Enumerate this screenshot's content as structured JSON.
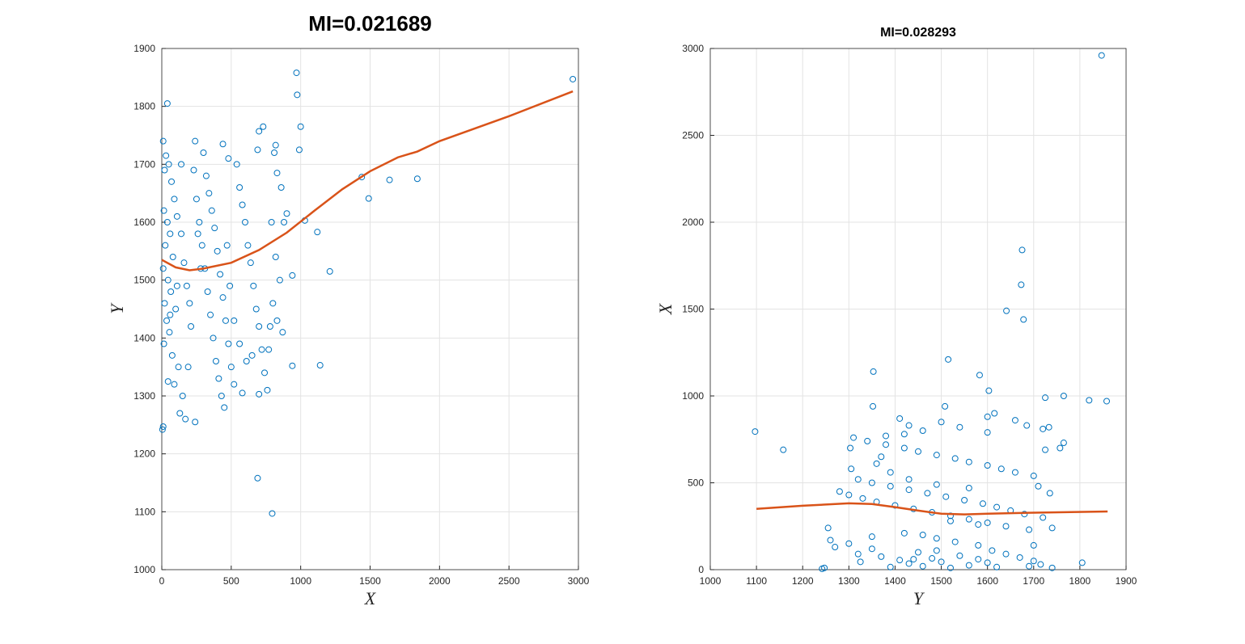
{
  "chart_data": [
    {
      "type": "scatter",
      "title": "MI=0.021689",
      "xlabel": "X",
      "ylabel": "Y",
      "color": "#0072bd",
      "fit_color": "#d95319",
      "grid": true,
      "xlim": [
        0,
        3000
      ],
      "ylim": [
        1000,
        1900
      ],
      "xticks": [
        0,
        500,
        1000,
        1500,
        2000,
        2500,
        3000
      ],
      "yticks": [
        1000,
        1100,
        1200,
        1300,
        1400,
        1500,
        1600,
        1700,
        1800,
        1900
      ],
      "x": [
        2960,
        970,
        975,
        1000,
        40,
        1440,
        1490,
        1640,
        1840,
        1210,
        1140,
        690,
        795,
        10,
        5,
        990,
        1030,
        1120,
        940,
        940,
        870,
        820,
        730,
        700,
        10,
        240,
        440,
        20,
        30,
        50,
        70,
        90,
        15,
        40,
        60,
        25,
        80,
        10,
        45,
        65,
        20,
        100,
        35,
        55,
        15,
        75,
        120,
        90,
        150,
        130,
        170,
        240,
        45,
        110,
        140,
        160,
        180,
        200,
        210,
        230,
        250,
        270,
        290,
        310,
        330,
        350,
        370,
        390,
        410,
        430,
        450,
        300,
        320,
        340,
        360,
        380,
        400,
        420,
        440,
        460,
        480,
        500,
        520,
        540,
        560,
        580,
        600,
        620,
        640,
        660,
        680,
        700,
        720,
        740,
        760,
        580,
        700,
        480,
        690,
        810,
        830,
        860,
        790,
        880,
        900,
        850,
        820,
        800,
        780,
        830,
        770,
        650,
        610,
        560,
        520,
        490,
        470,
        140,
        110,
        60,
        190,
        260,
        280
      ],
      "y": [
        1847,
        1858,
        1820,
        1765,
        1805,
        1678,
        1641,
        1673,
        1675,
        1515,
        1353,
        1158,
        1097,
        1247,
        1242,
        1725,
        1603,
        1583,
        1352,
        1508,
        1410,
        1733,
        1765,
        1757,
        1740,
        1740,
        1735,
        1690,
        1715,
        1700,
        1670,
        1640,
        1620,
        1600,
        1580,
        1560,
        1540,
        1520,
        1500,
        1480,
        1460,
        1450,
        1430,
        1410,
        1390,
        1370,
        1350,
        1320,
        1300,
        1270,
        1260,
        1255,
        1325,
        1610,
        1580,
        1530,
        1490,
        1460,
        1420,
        1690,
        1640,
        1600,
        1560,
        1520,
        1480,
        1440,
        1400,
        1360,
        1330,
        1300,
        1280,
        1720,
        1680,
        1650,
        1620,
        1590,
        1550,
        1510,
        1470,
        1430,
        1390,
        1350,
        1320,
        1700,
        1660,
        1630,
        1600,
        1560,
        1530,
        1490,
        1450,
        1420,
        1380,
        1340,
        1310,
        1305,
        1303,
        1710,
        1725,
        1720,
        1685,
        1660,
        1600,
        1600,
        1615,
        1500,
        1540,
        1460,
        1420,
        1430,
        1380,
        1370,
        1360,
        1390,
        1430,
        1490,
        1560,
        1700,
        1490,
        1440,
        1350,
        1580,
        1520
      ],
      "fit_x": [
        0,
        100,
        200,
        300,
        500,
        700,
        900,
        1100,
        1300,
        1500,
        1700,
        1840,
        2000,
        2500,
        2960
      ],
      "fit_y": [
        1535,
        1522,
        1517,
        1520,
        1530,
        1552,
        1582,
        1620,
        1657,
        1688,
        1712,
        1722,
        1740,
        1783,
        1826
      ]
    },
    {
      "type": "scatter",
      "title": "MI=0.028293",
      "xlabel": "Y",
      "ylabel": "X",
      "color": "#0072bd",
      "fit_color": "#d95319",
      "grid": true,
      "xlim": [
        1000,
        1900
      ],
      "ylim": [
        0,
        3000
      ],
      "xticks": [
        1000,
        1100,
        1200,
        1300,
        1400,
        1500,
        1600,
        1700,
        1800,
        1900
      ],
      "yticks": [
        0,
        500,
        1000,
        1500,
        2000,
        2500,
        3000
      ],
      "x": [
        1847,
        1858,
        1820,
        1765,
        1805,
        1678,
        1641,
        1673,
        1675,
        1515,
        1353,
        1158,
        1097,
        1247,
        1242,
        1725,
        1603,
        1583,
        1352,
        1508,
        1410,
        1733,
        1765,
        1757,
        1740,
        1740,
        1735,
        1690,
        1715,
        1700,
        1670,
        1640,
        1620,
        1600,
        1580,
        1560,
        1540,
        1520,
        1500,
        1480,
        1460,
        1450,
        1430,
        1410,
        1390,
        1370,
        1350,
        1320,
        1300,
        1270,
        1260,
        1255,
        1325,
        1610,
        1580,
        1530,
        1490,
        1460,
        1420,
        1690,
        1640,
        1600,
        1560,
        1520,
        1480,
        1440,
        1400,
        1360,
        1330,
        1300,
        1280,
        1720,
        1680,
        1650,
        1620,
        1590,
        1550,
        1510,
        1470,
        1430,
        1390,
        1350,
        1320,
        1700,
        1660,
        1630,
        1600,
        1560,
        1530,
        1490,
        1450,
        1420,
        1380,
        1340,
        1310,
        1305,
        1303,
        1710,
        1725,
        1720,
        1685,
        1660,
        1600,
        1600,
        1615,
        1500,
        1540,
        1460,
        1420,
        1430,
        1380,
        1370,
        1360,
        1390,
        1430,
        1490,
        1560,
        1700,
        1490,
        1440,
        1350,
        1580,
        1520
      ],
      "y": [
        2960,
        970,
        975,
        1000,
        40,
        1440,
        1490,
        1640,
        1840,
        1210,
        1140,
        690,
        795,
        10,
        5,
        990,
        1030,
        1120,
        940,
        940,
        870,
        820,
        730,
        700,
        10,
        240,
        440,
        20,
        30,
        50,
        70,
        90,
        15,
        40,
        60,
        25,
        80,
        10,
        45,
        65,
        20,
        100,
        35,
        55,
        15,
        75,
        120,
        90,
        150,
        130,
        170,
        240,
        45,
        110,
        140,
        160,
        180,
        200,
        210,
        230,
        250,
        270,
        290,
        310,
        330,
        350,
        370,
        390,
        410,
        430,
        450,
        300,
        320,
        340,
        360,
        380,
        400,
        420,
        440,
        460,
        480,
        500,
        520,
        540,
        560,
        580,
        600,
        620,
        640,
        660,
        680,
        700,
        720,
        740,
        760,
        580,
        700,
        480,
        690,
        810,
        830,
        860,
        790,
        880,
        900,
        850,
        820,
        800,
        780,
        830,
        770,
        650,
        610,
        560,
        520,
        490,
        470,
        140,
        110,
        60,
        190,
        260,
        280
      ],
      "fit_x": [
        1100,
        1200,
        1300,
        1350,
        1400,
        1450,
        1500,
        1550,
        1600,
        1700,
        1860
      ],
      "fit_y": [
        350,
        368,
        382,
        378,
        360,
        340,
        322,
        318,
        322,
        328,
        335
      ]
    }
  ]
}
